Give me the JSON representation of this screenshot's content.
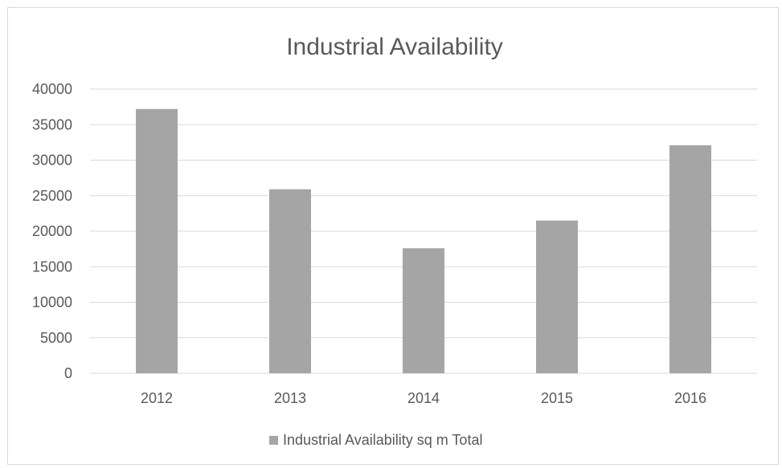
{
  "chart_data": {
    "type": "bar",
    "title": "Industrial Availability",
    "categories": [
      "2012",
      "2013",
      "2014",
      "2015",
      "2016"
    ],
    "series": [
      {
        "name": "Industrial Availability sq m Total",
        "values": [
          37200,
          25900,
          17600,
          21500,
          32100
        ],
        "color": "#a5a5a5"
      }
    ],
    "ylim": [
      0,
      40000
    ],
    "yticks": [
      0,
      5000,
      10000,
      15000,
      20000,
      25000,
      30000,
      35000,
      40000
    ],
    "grid": true,
    "gridColor": "#d9d9d9",
    "legend": "bottom"
  }
}
